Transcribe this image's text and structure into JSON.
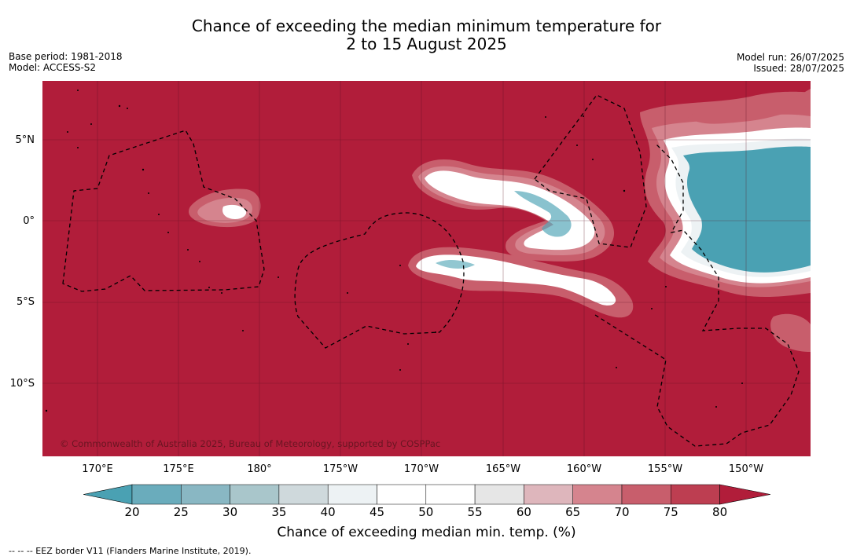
{
  "title_line1": "Chance of exceeding the median minimum temperature for",
  "title_line2": "2 to 15 August 2025",
  "base_period": "Base period: 1981-2018",
  "model": "Model: ACCESS-S2",
  "model_run": "Model run: 26/07/2025",
  "issued": "Issued: 28/07/2025",
  "copyright": "© Commonwealth of Australia 2025, Bureau of Meteorology, supported by COSPPac",
  "lat_labels": [
    "5°N",
    "0°",
    "5°S",
    "10°S"
  ],
  "lon_labels": [
    "170°E",
    "175°E",
    "180°",
    "175°W",
    "170°W",
    "165°W",
    "160°W",
    "155°W",
    "150°W"
  ],
  "colorbar": {
    "ticks": [
      "20",
      "25",
      "30",
      "35",
      "40",
      "45",
      "50",
      "55",
      "60",
      "65",
      "70",
      "75",
      "80"
    ],
    "colors": [
      "#4aa1b3",
      "#6aacbc",
      "#89b7c3",
      "#a9c6cb",
      "#cfd9dc",
      "#edf2f4",
      "#ffffff",
      "#ffffff",
      "#e6e6e6",
      "#deb6bc",
      "#d5848e",
      "#c85e6c",
      "#bd3e51",
      "#b11d3a"
    ],
    "title": "Chance of exceeding median min. temp. (%)"
  },
  "footnote": "--  --  -- EEZ border V11 (Flanders Marine Institute, 2019).",
  "background_color": "#b11d3a"
}
